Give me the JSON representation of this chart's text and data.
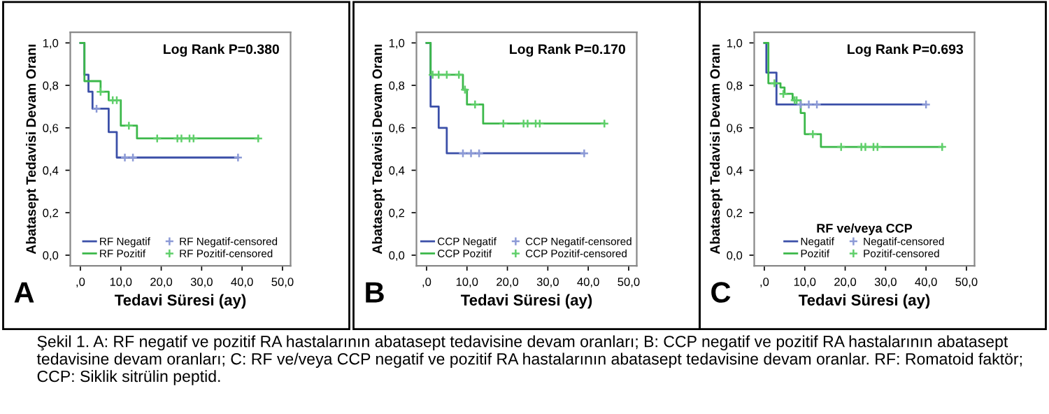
{
  "chart_data": [
    {
      "type": "step",
      "xlabel": "Tedavi Süresi (ay)",
      "ylabel": "Abatasept Tedavisi Devam Oranı",
      "xlim": [
        -2.5,
        52
      ],
      "ylim": [
        -0.05,
        1.05
      ],
      "xticks": [
        {
          "value": 0,
          "label": ",0"
        },
        {
          "value": 10,
          "label": "10,0"
        },
        {
          "value": 20,
          "label": "20,0"
        },
        {
          "value": 30,
          "label": "30,0"
        },
        {
          "value": 40,
          "label": "40,0"
        },
        {
          "value": 50,
          "label": "50,0"
        }
      ],
      "yticks": [
        {
          "value": 0,
          "label": "0,0"
        },
        {
          "value": 0.2,
          "label": "0,2"
        },
        {
          "value": 0.4,
          "label": "0,4"
        },
        {
          "value": 0.6,
          "label": "0,6"
        },
        {
          "value": 0.8,
          "label": "0,8"
        },
        {
          "value": 1.0,
          "label": "1,0"
        }
      ],
      "grid": false,
      "legend": "bottom",
      "annotations": [
        "Log Rank P=0.380",
        "A",
        "Şekil 1. A: RF negatif ve pozitif RA hastalarının abatasept tedavisine devam oranları; B: CCP negatif ve pozitif RA hastalarının abatasept tedavisine devam oranları; C: RF ve/veya CCP negatif ve pozitif RA hastalarının abatasept tedavisine devam oranlar. RF: Romatoid faktör; CCP: Siklik sitrülin peptid."
      ],
      "series": [
        {
          "name": "RF Negatif",
          "color": "#3b4fa8",
          "x": [
            0,
            1,
            2,
            3,
            7,
            9,
            39
          ],
          "values": [
            1.0,
            0.85,
            0.77,
            0.69,
            0.58,
            0.46,
            0.46
          ]
        },
        {
          "name": "RF Pozitif",
          "color": "#3cb84a",
          "x": [
            0,
            1,
            5,
            7,
            10,
            14,
            44
          ],
          "values": [
            1.0,
            0.82,
            0.77,
            0.73,
            0.61,
            0.55,
            0.55
          ]
        },
        {
          "name": "RF Negatif-censored",
          "type": "scatter",
          "marker": "cross",
          "color": "#8c9ad6",
          "x": [
            4,
            11,
            13,
            39
          ],
          "values": [
            0.69,
            0.46,
            0.46,
            0.46
          ]
        },
        {
          "name": "RF Pozitif-censored",
          "type": "scatter",
          "marker": "cross",
          "color": "#5fcf6a",
          "x": [
            5,
            8,
            9,
            12,
            19,
            24,
            25,
            27,
            28,
            44
          ],
          "values": [
            0.77,
            0.73,
            0.73,
            0.61,
            0.55,
            0.55,
            0.55,
            0.55,
            0.55,
            0.55
          ]
        }
      ]
    },
    {
      "type": "step",
      "xlabel": "Tedavi Süresi (ay)",
      "ylabel": "Abatasept Tedavisi Devam Oranı",
      "xlim": [
        -2.5,
        52
      ],
      "ylim": [
        -0.05,
        1.05
      ],
      "xticks": [
        {
          "value": 0,
          "label": ",0"
        },
        {
          "value": 10,
          "label": "10,0"
        },
        {
          "value": 20,
          "label": "20,0"
        },
        {
          "value": 30,
          "label": "30,0"
        },
        {
          "value": 40,
          "label": "40,0"
        },
        {
          "value": 50,
          "label": "50,0"
        }
      ],
      "yticks": [
        {
          "value": 0,
          "label": "0,0"
        },
        {
          "value": 0.2,
          "label": "0,2"
        },
        {
          "value": 0.4,
          "label": "0,4"
        },
        {
          "value": 0.6,
          "label": "0,6"
        },
        {
          "value": 0.8,
          "label": "0,8"
        },
        {
          "value": 1.0,
          "label": "1,0"
        }
      ],
      "grid": false,
      "legend": "bottom",
      "annotations": [
        "Log Rank P=0.170",
        "B"
      ],
      "series": [
        {
          "name": "CCP Negatif",
          "color": "#3b4fa8",
          "x": [
            0,
            1,
            3,
            5,
            39
          ],
          "values": [
            1.0,
            0.7,
            0.6,
            0.48,
            0.48
          ]
        },
        {
          "name": "CCP Pozitif",
          "color": "#3cb84a",
          "x": [
            0,
            1,
            9,
            10,
            14,
            44
          ],
          "values": [
            1.0,
            0.85,
            0.78,
            0.71,
            0.62,
            0.62
          ]
        },
        {
          "name": "CCP Negatif-censored",
          "type": "scatter",
          "marker": "cross",
          "color": "#8c9ad6",
          "x": [
            9,
            11,
            13,
            39
          ],
          "values": [
            0.48,
            0.48,
            0.48,
            0.48
          ]
        },
        {
          "name": "CCP Pozitif-censored",
          "type": "scatter",
          "marker": "cross",
          "color": "#5fcf6a",
          "x": [
            1.5,
            3,
            5,
            8,
            9.5,
            12,
            19,
            24,
            25,
            27,
            28,
            44
          ],
          "values": [
            0.85,
            0.85,
            0.85,
            0.85,
            0.78,
            0.71,
            0.62,
            0.62,
            0.62,
            0.62,
            0.62,
            0.62
          ]
        }
      ]
    },
    {
      "type": "step",
      "xlabel": "Tedavi Süresi (ay)",
      "ylabel": "Abatasept Tedavisi Devam Oranı",
      "xlim": [
        -2.5,
        52
      ],
      "ylim": [
        -0.05,
        1.05
      ],
      "xticks": [
        {
          "value": 0,
          "label": ",0"
        },
        {
          "value": 10,
          "label": "10,0"
        },
        {
          "value": 20,
          "label": "20,0"
        },
        {
          "value": 30,
          "label": "30,0"
        },
        {
          "value": 40,
          "label": "40,0"
        },
        {
          "value": 50,
          "label": "50,0"
        }
      ],
      "yticks": [
        {
          "value": 0,
          "label": "0,0"
        },
        {
          "value": 0.2,
          "label": "0,2"
        },
        {
          "value": 0.4,
          "label": "0,4"
        },
        {
          "value": 0.6,
          "label": "0,6"
        },
        {
          "value": 0.8,
          "label": "0,8"
        },
        {
          "value": 1.0,
          "label": "1,0"
        }
      ],
      "grid": false,
      "legend": "bottom",
      "legend_title": "RF ve/veya CCP",
      "annotations": [
        "Log Rank P=0.693",
        "C"
      ],
      "series": [
        {
          "name": "Negatif",
          "color": "#3b4fa8",
          "x": [
            0,
            0.5,
            3,
            40
          ],
          "values": [
            1.0,
            0.86,
            0.71,
            0.71
          ]
        },
        {
          "name": "Pozitif",
          "color": "#3cb84a",
          "x": [
            0,
            1,
            4,
            5,
            7,
            9,
            10,
            14,
            44
          ],
          "values": [
            1.0,
            0.81,
            0.79,
            0.76,
            0.73,
            0.67,
            0.57,
            0.51,
            0.51
          ]
        },
        {
          "name": "Negatif-censored",
          "type": "scatter",
          "marker": "cross",
          "color": "#8c9ad6",
          "x": [
            9,
            11,
            13,
            40
          ],
          "values": [
            0.71,
            0.71,
            0.71,
            0.71
          ]
        },
        {
          "name": "Pozitif-censored",
          "type": "scatter",
          "marker": "cross",
          "color": "#5fcf6a",
          "x": [
            2.5,
            4.7,
            7.5,
            8,
            12,
            19,
            24,
            25,
            27,
            28,
            44
          ],
          "values": [
            0.81,
            0.76,
            0.73,
            0.73,
            0.57,
            0.51,
            0.51,
            0.51,
            0.51,
            0.51,
            0.51
          ]
        }
      ]
    }
  ]
}
